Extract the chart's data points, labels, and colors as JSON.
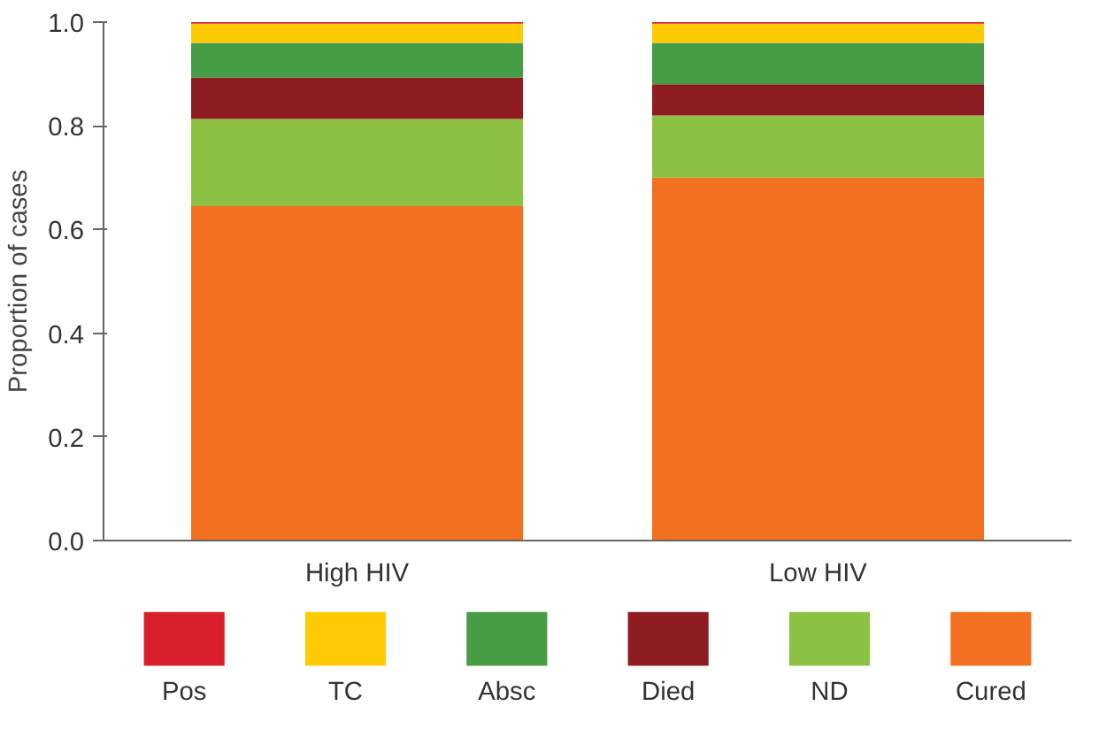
{
  "chart_data": {
    "type": "bar",
    "stacked": true,
    "categories": [
      "High HIV",
      "Low HIV"
    ],
    "ylabel": "Proportion of cases",
    "ylim": [
      0,
      1
    ],
    "yticks": [
      {
        "value": 0,
        "label": "0.0"
      },
      {
        "value": 0.2,
        "label": "0.2"
      },
      {
        "value": 0.4,
        "label": "0.4"
      },
      {
        "value": 0.6,
        "label": "0.6"
      },
      {
        "value": 0.8,
        "label": "0.8"
      },
      {
        "value": 1,
        "label": "1.0"
      }
    ],
    "grid": false,
    "legend": "bottom",
    "series": [
      {
        "name": "Cured",
        "color": "#f37021",
        "values": [
          0.645,
          0.7
        ]
      },
      {
        "name": "ND",
        "color": "#8dc143",
        "values": [
          0.168,
          0.12
        ]
      },
      {
        "name": "Died",
        "color": "#8f1c20",
        "values": [
          0.08,
          0.06
        ]
      },
      {
        "name": "Absc",
        "color": "#479c46",
        "values": [
          0.067,
          0.08
        ]
      },
      {
        "name": "TC",
        "color": "#ffcb05",
        "values": [
          0.037,
          0.037
        ]
      },
      {
        "name": "Pos",
        "color": "#d9202a",
        "values": [
          0.003,
          0.003
        ]
      }
    ]
  }
}
